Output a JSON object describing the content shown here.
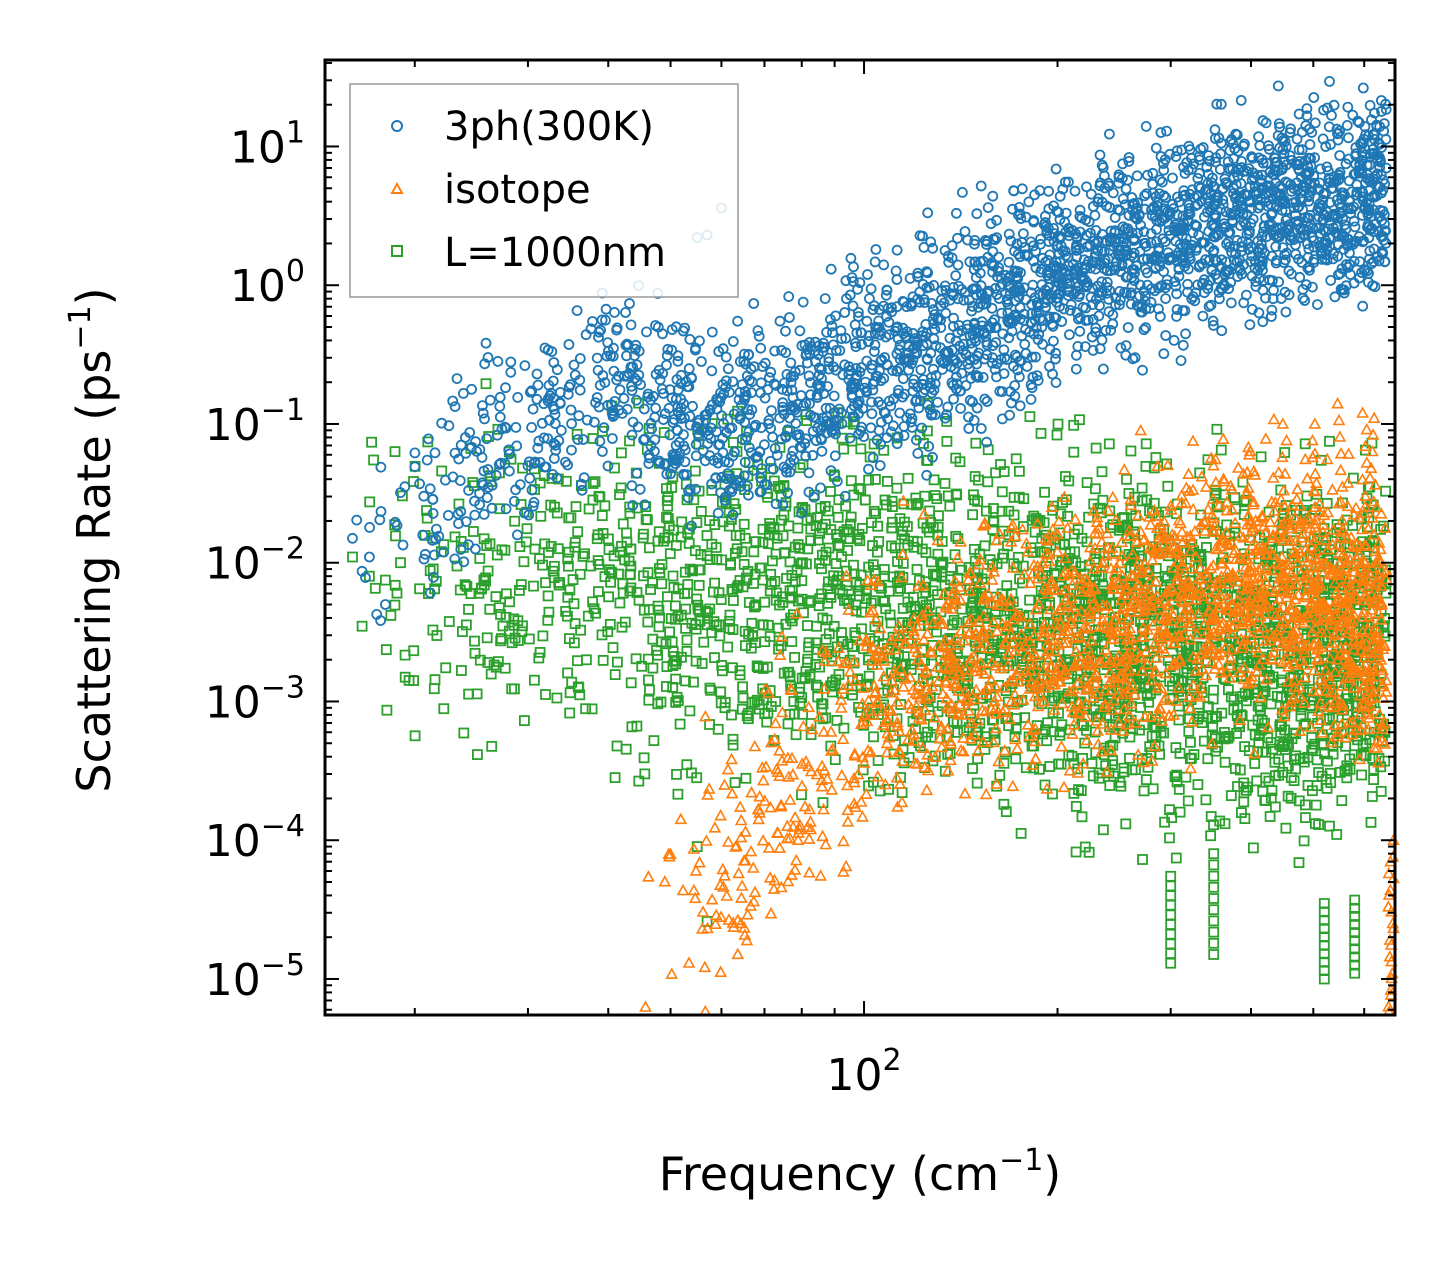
{
  "chart_data": {
    "type": "scatter",
    "xscale": "log",
    "yscale": "log",
    "xlim": [
      14.5,
      670
    ],
    "ylim": [
      5.5e-06,
      42
    ],
    "xlabel_main": "Frequency (cm",
    "xlabel_sup": "−1",
    "xlabel_end": ")",
    "ylabel_main": "Scattering Rate (ps",
    "ylabel_sup": "−1",
    "ylabel_end": ")",
    "x_tick_labels": [
      {
        "value": 100,
        "base": "10",
        "exp": "2"
      }
    ],
    "y_tick_labels": [
      {
        "value": 10,
        "base": "10",
        "exp": "1"
      },
      {
        "value": 1,
        "base": "10",
        "exp": "0"
      },
      {
        "value": 0.1,
        "base": "10",
        "exp": "−1"
      },
      {
        "value": 0.01,
        "base": "10",
        "exp": "−2"
      },
      {
        "value": 0.001,
        "base": "10",
        "exp": "−3"
      },
      {
        "value": 0.0001,
        "base": "10",
        "exp": "−4"
      },
      {
        "value": 1e-05,
        "base": "10",
        "exp": "−5"
      }
    ],
    "legend_position": "upper-left",
    "series": [
      {
        "name": "3ph(300K)",
        "marker": "circle",
        "color": "#1f77b4",
        "trend_points": [
          [
            16,
            0.015
          ],
          [
            25,
            0.05
          ],
          [
            40,
            0.2
          ],
          [
            60,
            0.08
          ],
          [
            100,
            0.25
          ],
          [
            150,
            0.6
          ],
          [
            250,
            1.8
          ],
          [
            400,
            3.5
          ],
          [
            650,
            4.5
          ]
        ],
        "band_decades_half_width": 0.35,
        "outlier_points": [
          [
            16,
            0.015
          ],
          [
            17,
            0.011
          ],
          [
            18,
            0.005
          ],
          [
            19,
            0.032
          ],
          [
            21,
            0.078
          ],
          [
            21.5,
            0.062
          ],
          [
            26,
            0.047
          ],
          [
            28,
            0.065
          ],
          [
            30,
            0.05
          ],
          [
            32,
            0.049
          ],
          [
            60,
            3.6
          ],
          [
            55,
            2.2
          ],
          [
            57,
            2.3
          ]
        ]
      },
      {
        "name": "isotope",
        "marker": "triangle",
        "color": "#ff7f0e",
        "trend_points": [
          [
            45,
            1.1e-05
          ],
          [
            55,
            4.5e-05
          ],
          [
            70,
            0.00015
          ],
          [
            90,
            0.0005
          ],
          [
            110,
            0.0013
          ],
          [
            150,
            0.002
          ],
          [
            250,
            0.004
          ],
          [
            400,
            0.008
          ],
          [
            650,
            0.003
          ]
        ],
        "band_decades_half_width": 0.45,
        "peak_points": [
          [
            350,
            0.05
          ],
          [
            400,
            0.06
          ],
          [
            450,
            0.1
          ],
          [
            500,
            0.1
          ],
          [
            550,
            0.14
          ],
          [
            600,
            0.12
          ],
          [
            620,
            0.11
          ],
          [
            660,
            0.0001
          ],
          [
            660,
            7e-05
          ]
        ]
      },
      {
        "name": "L=1000nm",
        "marker": "square",
        "color": "#2ca02c",
        "trend_points": [
          [
            16,
            0.011
          ],
          [
            20,
            0.008
          ],
          [
            30,
            0.0065
          ],
          [
            50,
            0.0058
          ],
          [
            80,
            0.0055
          ],
          [
            120,
            0.004
          ],
          [
            200,
            0.003
          ],
          [
            350,
            0.0025
          ],
          [
            650,
            0.0025
          ]
        ],
        "band_decades_half_width": 0.6,
        "outlier_points": [
          [
            16,
            0.011
          ],
          [
            17,
            0.008
          ],
          [
            18,
            0.0075
          ],
          [
            19,
            0.01
          ],
          [
            21,
            0.006
          ],
          [
            22,
            0.012
          ],
          [
            53,
            0.00035
          ],
          [
            55,
            9e-05
          ],
          [
            57,
            2.6e-05
          ],
          [
            63,
            0.00026
          ]
        ],
        "column_drops": [
          [
            300,
            1.3e-05,
            5.5e-05
          ],
          [
            350,
            1.5e-05,
            8e-05
          ],
          [
            520,
            1e-05,
            3.5e-05
          ],
          [
            580,
            1.1e-05,
            3.7e-05
          ]
        ]
      }
    ]
  }
}
